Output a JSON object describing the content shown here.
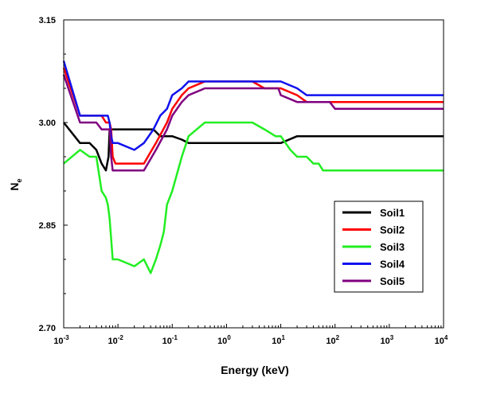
{
  "chart_data": {
    "type": "line",
    "title": "",
    "xlabel": "Energy (keV)",
    "ylabel": {
      "main": "N",
      "sub": "e"
    },
    "x_scale": "log",
    "xlim": [
      0.001,
      10000
    ],
    "ylim": [
      2.7,
      3.15
    ],
    "x_ticks": [
      {
        "value": 0.001,
        "base": "10",
        "exp": "-3"
      },
      {
        "value": 0.01,
        "base": "10",
        "exp": "-2"
      },
      {
        "value": 0.1,
        "base": "10",
        "exp": "-1"
      },
      {
        "value": 1,
        "base": "10",
        "exp": "0"
      },
      {
        "value": 10,
        "base": "10",
        "exp": "1"
      },
      {
        "value": 100,
        "base": "10",
        "exp": "2"
      },
      {
        "value": 1000,
        "base": "10",
        "exp": "3"
      },
      {
        "value": 10000,
        "base": "10",
        "exp": "4"
      }
    ],
    "y_ticks": [
      {
        "value": 2.7,
        "label": "2.70"
      },
      {
        "value": 2.85,
        "label": "2.85"
      },
      {
        "value": 3.0,
        "label": "3.00"
      },
      {
        "value": 3.15,
        "label": "3.15"
      }
    ],
    "grid": false,
    "legend_position": "lower-right",
    "series": [
      {
        "name": "Soil1",
        "color": "#000000",
        "x": [
          0.001,
          0.002,
          0.003,
          0.004,
          0.005,
          0.006,
          0.0067,
          0.007,
          0.0075,
          0.008,
          0.01,
          0.02,
          0.03,
          0.045,
          0.06,
          0.07,
          0.1,
          0.15,
          0.2,
          1,
          5,
          10,
          20,
          10000
        ],
        "y": [
          3.0,
          2.97,
          2.97,
          2.96,
          2.94,
          2.93,
          2.95,
          2.99,
          2.99,
          2.99,
          2.99,
          2.99,
          2.99,
          2.99,
          2.98,
          2.98,
          2.98,
          2.975,
          2.97,
          2.97,
          2.97,
          2.97,
          2.98,
          2.98
        ]
      },
      {
        "name": "Soil2",
        "color": "#ff0000",
        "x": [
          0.001,
          0.002,
          0.004,
          0.005,
          0.006,
          0.007,
          0.0075,
          0.008,
          0.009,
          0.01,
          0.02,
          0.03,
          0.05,
          0.08,
          0.1,
          0.15,
          0.2,
          0.4,
          1,
          3,
          5,
          10,
          20,
          30,
          40,
          10000
        ],
        "y": [
          3.08,
          3.01,
          3.01,
          3.01,
          3.0,
          3.0,
          2.99,
          2.95,
          2.94,
          2.94,
          2.94,
          2.94,
          2.97,
          3.0,
          3.02,
          3.04,
          3.05,
          3.06,
          3.06,
          3.06,
          3.05,
          3.05,
          3.04,
          3.03,
          3.03,
          3.03
        ]
      },
      {
        "name": "Soil3",
        "color": "#22ee22",
        "x": [
          0.001,
          0.002,
          0.003,
          0.004,
          0.005,
          0.006,
          0.0065,
          0.007,
          0.0075,
          0.008,
          0.01,
          0.02,
          0.03,
          0.04,
          0.05,
          0.06,
          0.07,
          0.08,
          0.1,
          0.15,
          0.2,
          0.4,
          1,
          3,
          5,
          8,
          10,
          15,
          20,
          30,
          40,
          50,
          60,
          10000
        ],
        "y": [
          2.94,
          2.96,
          2.95,
          2.95,
          2.9,
          2.89,
          2.88,
          2.86,
          2.83,
          2.8,
          2.8,
          2.79,
          2.8,
          2.78,
          2.8,
          2.82,
          2.84,
          2.88,
          2.9,
          2.95,
          2.98,
          3.0,
          3.0,
          3.0,
          2.99,
          2.98,
          2.98,
          2.96,
          2.95,
          2.95,
          2.94,
          2.94,
          2.93,
          2.93
        ]
      },
      {
        "name": "Soil4",
        "color": "#1111ee",
        "x": [
          0.001,
          0.002,
          0.004,
          0.006,
          0.0065,
          0.007,
          0.0075,
          0.008,
          0.01,
          0.02,
          0.03,
          0.045,
          0.06,
          0.08,
          0.1,
          0.15,
          0.2,
          0.4,
          1,
          3,
          5,
          10,
          20,
          30,
          10000
        ],
        "y": [
          3.09,
          3.01,
          3.01,
          3.01,
          3.01,
          3.0,
          2.98,
          2.97,
          2.97,
          2.96,
          2.97,
          2.99,
          3.01,
          3.02,
          3.04,
          3.05,
          3.06,
          3.06,
          3.06,
          3.06,
          3.06,
          3.06,
          3.05,
          3.04,
          3.04
        ]
      },
      {
        "name": "Soil5",
        "color": "#800080",
        "x": [
          0.001,
          0.002,
          0.003,
          0.004,
          0.005,
          0.006,
          0.007,
          0.0075,
          0.008,
          0.01,
          0.02,
          0.03,
          0.05,
          0.08,
          0.1,
          0.15,
          0.2,
          0.4,
          1,
          3,
          5,
          9,
          10,
          20,
          40,
          80,
          100,
          10000
        ],
        "y": [
          3.07,
          3.0,
          3.0,
          3.0,
          2.99,
          2.99,
          2.99,
          2.95,
          2.93,
          2.93,
          2.93,
          2.93,
          2.96,
          2.99,
          3.01,
          3.03,
          3.04,
          3.05,
          3.05,
          3.05,
          3.05,
          3.05,
          3.04,
          3.03,
          3.03,
          3.03,
          3.02,
          3.02
        ]
      }
    ]
  }
}
